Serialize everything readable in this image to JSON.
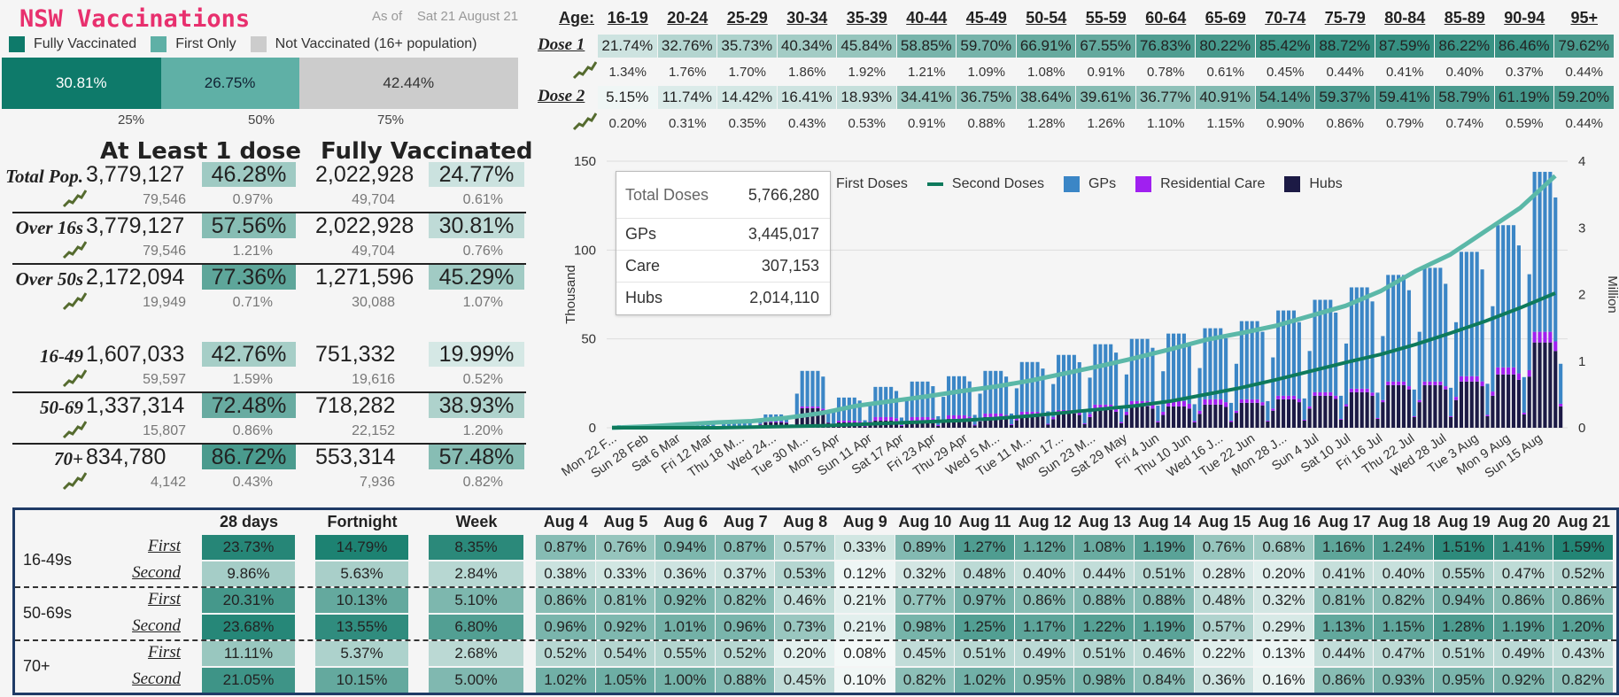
{
  "header": {
    "title": "NSW Vaccinations",
    "as_of_label": "As of",
    "as_of_date": "Sat 21 August 21"
  },
  "legend": {
    "fully": "Fully Vaccinated",
    "first": "First Only",
    "none": "Not Vaccinated (16+ population)",
    "colors": {
      "fully": "#0e7a6a",
      "first": "#5fb0a6",
      "none": "#cccccc"
    }
  },
  "stack_bar": {
    "fully": 30.81,
    "first": 26.75,
    "none": 42.44,
    "fully_label": "30.81%",
    "first_label": "26.75%",
    "none_label": "42.44%",
    "ticks": [
      "25%",
      "50%",
      "75%"
    ]
  },
  "summary": {
    "header_atleast": "At Least 1 dose",
    "header_fully": "Fully Vaccinated",
    "rows": [
      {
        "label": "Total Pop.",
        "dose1": "3,779,127",
        "dose1_pct": "46.28%",
        "dose1_pct_val": 46.28,
        "full": "2,022,928",
        "full_pct": "24.77%",
        "full_pct_val": 24.77,
        "dose1_chg": "79,546",
        "dose1_chg_pct": "0.97%",
        "full_chg": "49,704",
        "full_chg_pct": "0.61%"
      },
      {
        "label": "Over 16s",
        "dose1": "3,779,127",
        "dose1_pct": "57.56%",
        "dose1_pct_val": 57.56,
        "full": "2,022,928",
        "full_pct": "30.81%",
        "full_pct_val": 30.81,
        "dose1_chg": "79,546",
        "dose1_chg_pct": "1.21%",
        "full_chg": "49,704",
        "full_chg_pct": "0.76%"
      },
      {
        "label": "Over 50s",
        "dose1": "2,172,094",
        "dose1_pct": "77.36%",
        "dose1_pct_val": 77.36,
        "full": "1,271,596",
        "full_pct": "45.29%",
        "full_pct_val": 45.29,
        "dose1_chg": "19,949",
        "dose1_chg_pct": "0.71%",
        "full_chg": "30,088",
        "full_chg_pct": "1.07%"
      },
      {
        "label": "16-49",
        "dose1": "1,607,033",
        "dose1_pct": "42.76%",
        "dose1_pct_val": 42.76,
        "full": "751,332",
        "full_pct": "19.99%",
        "full_pct_val": 19.99,
        "dose1_chg": "59,597",
        "dose1_chg_pct": "1.59%",
        "full_chg": "19,616",
        "full_chg_pct": "0.52%"
      },
      {
        "label": "50-69",
        "dose1": "1,337,314",
        "dose1_pct": "72.48%",
        "dose1_pct_val": 72.48,
        "full": "718,282",
        "full_pct": "38.93%",
        "full_pct_val": 38.93,
        "dose1_chg": "15,807",
        "dose1_chg_pct": "0.86%",
        "full_chg": "22,152",
        "full_chg_pct": "1.20%"
      },
      {
        "label": "70+",
        "dose1": "834,780",
        "dose1_pct": "86.72%",
        "dose1_pct_val": 86.72,
        "full": "553,314",
        "full_pct": "57.48%",
        "full_pct_val": 57.48,
        "dose1_chg": "4,142",
        "dose1_chg_pct": "0.43%",
        "full_chg": "7,936",
        "full_chg_pct": "0.82%"
      }
    ]
  },
  "age_table": {
    "age_label": "Age:",
    "dose1_label": "Dose 1",
    "dose2_label": "Dose 2",
    "ages": [
      "16-19",
      "20-24",
      "25-29",
      "30-34",
      "35-39",
      "40-44",
      "45-49",
      "50-54",
      "55-59",
      "60-64",
      "65-69",
      "70-74",
      "75-79",
      "80-84",
      "85-89",
      "90-94",
      "95+"
    ],
    "dose1": [
      "21.74%",
      "32.76%",
      "35.73%",
      "40.34%",
      "45.84%",
      "58.85%",
      "59.70%",
      "66.91%",
      "67.55%",
      "76.83%",
      "80.22%",
      "85.42%",
      "88.72%",
      "87.59%",
      "86.22%",
      "86.46%",
      "79.62%"
    ],
    "dose1_chg": [
      "1.34%",
      "1.76%",
      "1.70%",
      "1.86%",
      "1.92%",
      "1.21%",
      "1.09%",
      "1.08%",
      "0.91%",
      "0.78%",
      "0.61%",
      "0.45%",
      "0.44%",
      "0.41%",
      "0.40%",
      "0.37%",
      "0.44%"
    ],
    "dose2": [
      "5.15%",
      "11.74%",
      "14.42%",
      "16.41%",
      "18.93%",
      "34.41%",
      "36.75%",
      "38.64%",
      "39.61%",
      "36.77%",
      "40.91%",
      "54.14%",
      "59.37%",
      "59.41%",
      "58.79%",
      "61.19%",
      "59.20%"
    ],
    "dose2_chg": [
      "0.20%",
      "0.31%",
      "0.35%",
      "0.43%",
      "0.53%",
      "0.91%",
      "0.88%",
      "1.28%",
      "1.26%",
      "1.10%",
      "1.15%",
      "0.90%",
      "0.86%",
      "0.79%",
      "0.74%",
      "0.59%",
      "0.44%"
    ]
  },
  "tooltip": {
    "rows": [
      {
        "k": "Total Doses",
        "v": "5,766,280"
      },
      {
        "k": "GPs",
        "v": "3,445,017"
      },
      {
        "k": "Care",
        "v": "307,153"
      },
      {
        "k": "Hubs",
        "v": "2,014,110"
      }
    ]
  },
  "chart_data": {
    "type": "bar",
    "ylabel": "Thousand",
    "y2label": "Million",
    "ylim": [
      0,
      150
    ],
    "y2lim": [
      0,
      4
    ],
    "yticks": [
      0,
      50,
      100,
      150
    ],
    "y2ticks": [
      0,
      1,
      2,
      3,
      4
    ],
    "legend_items": [
      {
        "name": "First Doses",
        "kind": "line",
        "color": "#5bb8a8"
      },
      {
        "name": "Second Doses",
        "kind": "line",
        "color": "#0e7a5c"
      },
      {
        "name": "GPs",
        "kind": "bar",
        "color": "#3b86c6"
      },
      {
        "name": "Residential Care",
        "kind": "bar",
        "color": "#a020f0"
      },
      {
        "name": "Hubs",
        "kind": "bar",
        "color": "#1c1a45"
      }
    ],
    "x_tick_labels": [
      "Mon 22 F...",
      "Sun 28 Feb",
      "Sat 6 Mar",
      "Fri 12 Mar",
      "Thu 18 M...",
      "Wed 24...",
      "Tue 30 M...",
      "Mon 5 Apr",
      "Sun 11 Apr",
      "Sat 17 Apr",
      "Fri 23 Apr",
      "Thu 29 Apr",
      "Wed 5 M...",
      "Tue 11 M...",
      "Mon 17...",
      "Sun 23 M...",
      "Sat 29 May",
      "Fri 4 Jun",
      "Thu 10 Jun",
      "Wed 16 J...",
      "Tue 22 Jun",
      "Mon 28 J...",
      "Sun 4 Jul",
      "Sat 10 Jul",
      "Fri 16 Jul",
      "Thu 22 Jul",
      "Wed 28 Jul",
      "Tue 3 Aug",
      "Mon 9 Aug",
      "Sun 15 Aug"
    ],
    "weeks": 26,
    "gps_weekly_pattern": [
      0.6,
      1.0,
      1.0,
      1.0,
      1.0,
      0.9,
      0.25
    ],
    "gps_week_peaks": [
      1,
      1.5,
      2,
      3,
      4,
      20,
      13,
      17,
      20,
      22,
      24,
      28,
      31,
      34,
      35,
      38,
      40,
      44,
      48,
      52,
      57,
      60,
      64,
      70,
      80,
      90
    ],
    "hubs_week_peaks": [
      0.5,
      0.5,
      0.5,
      0.8,
      3,
      11,
      3,
      4,
      4,
      5,
      6,
      7,
      8,
      10,
      12,
      12,
      13,
      14,
      16,
      18,
      20,
      24,
      24,
      26,
      30,
      48
    ],
    "care_week_peaks": [
      0,
      0,
      0,
      0,
      0.5,
      1,
      1,
      2,
      2,
      2,
      2,
      2,
      2,
      3,
      3,
      3,
      3,
      2,
      2,
      2,
      2,
      2,
      2,
      3,
      4,
      6
    ],
    "first_doses_cum": [
      0,
      0.02,
      0.05,
      0.08,
      0.1,
      0.15,
      0.22,
      0.33,
      0.4,
      0.47,
      0.55,
      0.62,
      0.71,
      0.82,
      0.93,
      1.05,
      1.18,
      1.32,
      1.42,
      1.53,
      1.68,
      1.83,
      2.05,
      2.35,
      2.6,
      2.95,
      3.3,
      3.78
    ],
    "second_doses_cum": [
      0,
      0,
      0,
      0,
      0.01,
      0.02,
      0.03,
      0.05,
      0.07,
      0.09,
      0.11,
      0.14,
      0.18,
      0.23,
      0.28,
      0.33,
      0.4,
      0.5,
      0.6,
      0.72,
      0.85,
      0.98,
      1.1,
      1.25,
      1.42,
      1.6,
      1.8,
      2.02
    ]
  },
  "bottom_table": {
    "headers": [
      "28 days",
      "Fortnight",
      "Week",
      "Aug 4",
      "Aug 5",
      "Aug 6",
      "Aug 7",
      "Aug 8",
      "Aug 9",
      "Aug 10",
      "Aug 11",
      "Aug 12",
      "Aug 13",
      "Aug 14",
      "Aug 15",
      "Aug 16",
      "Aug 17",
      "Aug 18",
      "Aug 19",
      "Aug 20",
      "Aug 21"
    ],
    "groups": [
      {
        "name": "16-49s",
        "rows": [
          {
            "label": "First",
            "values": [
              "23.73%",
              "14.79%",
              "8.35%",
              "0.87%",
              "0.76%",
              "0.94%",
              "0.87%",
              "0.57%",
              "0.33%",
              "0.89%",
              "1.27%",
              "1.12%",
              "1.08%",
              "1.19%",
              "0.76%",
              "0.68%",
              "1.16%",
              "1.24%",
              "1.51%",
              "1.41%",
              "1.59%"
            ]
          },
          {
            "label": "Second",
            "values": [
              "9.86%",
              "5.63%",
              "2.84%",
              "0.38%",
              "0.33%",
              "0.36%",
              "0.37%",
              "0.53%",
              "0.12%",
              "0.32%",
              "0.48%",
              "0.40%",
              "0.44%",
              "0.51%",
              "0.28%",
              "0.20%",
              "0.41%",
              "0.40%",
              "0.55%",
              "0.47%",
              "0.52%"
            ]
          }
        ]
      },
      {
        "name": "50-69s",
        "rows": [
          {
            "label": "First",
            "values": [
              "20.31%",
              "10.13%",
              "5.10%",
              "0.86%",
              "0.81%",
              "0.92%",
              "0.82%",
              "0.46%",
              "0.21%",
              "0.77%",
              "0.97%",
              "0.86%",
              "0.88%",
              "0.88%",
              "0.48%",
              "0.32%",
              "0.81%",
              "0.82%",
              "0.94%",
              "0.86%",
              "0.86%"
            ]
          },
          {
            "label": "Second",
            "values": [
              "23.68%",
              "13.55%",
              "6.80%",
              "0.96%",
              "0.92%",
              "1.01%",
              "0.96%",
              "0.73%",
              "0.21%",
              "0.98%",
              "1.25%",
              "1.17%",
              "1.22%",
              "1.19%",
              "0.57%",
              "0.29%",
              "1.13%",
              "1.15%",
              "1.28%",
              "1.19%",
              "1.20%"
            ]
          }
        ]
      },
      {
        "name": "70+",
        "rows": [
          {
            "label": "First",
            "values": [
              "11.11%",
              "5.37%",
              "2.68%",
              "0.52%",
              "0.54%",
              "0.55%",
              "0.52%",
              "0.20%",
              "0.08%",
              "0.45%",
              "0.51%",
              "0.49%",
              "0.51%",
              "0.46%",
              "0.22%",
              "0.13%",
              "0.44%",
              "0.47%",
              "0.51%",
              "0.49%",
              "0.43%"
            ]
          },
          {
            "label": "Second",
            "values": [
              "21.05%",
              "10.15%",
              "5.00%",
              "1.02%",
              "1.05%",
              "1.00%",
              "0.88%",
              "0.45%",
              "0.10%",
              "0.82%",
              "1.02%",
              "0.95%",
              "0.98%",
              "0.84%",
              "0.36%",
              "0.16%",
              "0.86%",
              "0.93%",
              "0.95%",
              "0.92%",
              "0.82%"
            ]
          }
        ]
      }
    ]
  }
}
